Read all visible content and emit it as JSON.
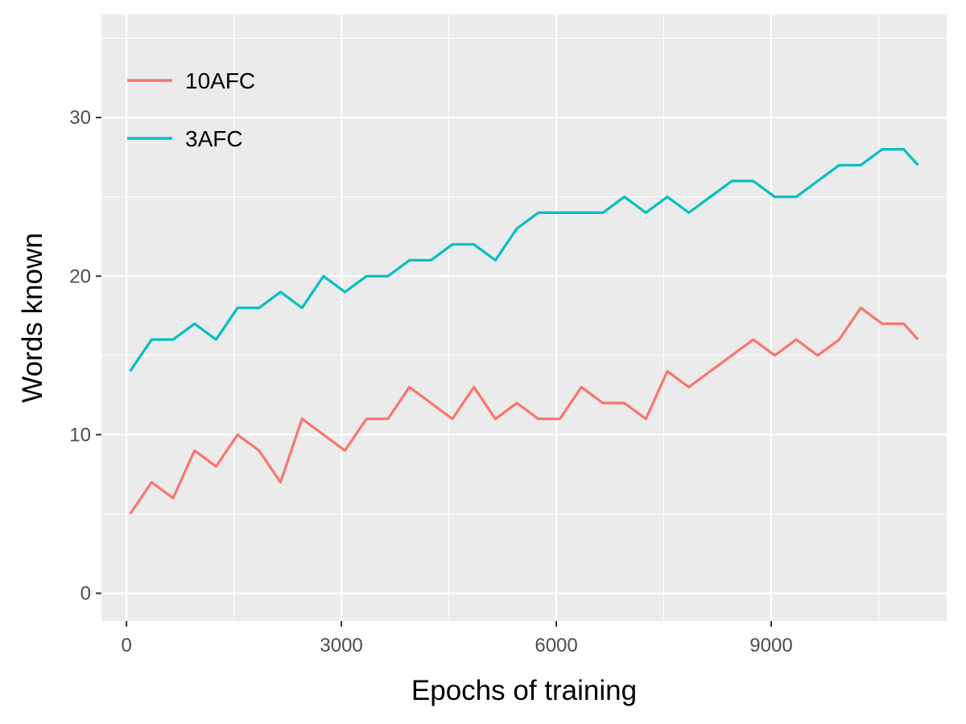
{
  "chart_data": {
    "type": "line",
    "title": "",
    "xlabel": "Epochs of training",
    "ylabel": "Words known",
    "xlim": [
      -350,
      11450
    ],
    "ylim": [
      -1.75,
      36.5
    ],
    "x_ticks": [
      0,
      3000,
      6000,
      9000
    ],
    "x_tick_labels": [
      "0",
      "3000",
      "6000",
      "9000"
    ],
    "y_ticks": [
      0,
      10,
      20,
      30
    ],
    "y_tick_labels": [
      "0",
      "10",
      "20",
      "30"
    ],
    "grid": true,
    "legend_position": "top-left",
    "series": [
      {
        "name": "10AFC",
        "color": "#f8766d",
        "x": [
          50,
          350,
          650,
          950,
          1250,
          1550,
          1850,
          2150,
          2450,
          2750,
          3050,
          3350,
          3650,
          3950,
          4250,
          4550,
          4850,
          5150,
          5450,
          5750,
          6050,
          6350,
          6650,
          6950,
          7250,
          7550,
          7850,
          8150,
          8450,
          8750,
          9050,
          9350,
          9650,
          9950,
          10250,
          10550,
          10850,
          11050
        ],
        "values": [
          5,
          7,
          6,
          9,
          8,
          10,
          9,
          7,
          11,
          10,
          9,
          11,
          11,
          13,
          12,
          11,
          13,
          11,
          12,
          11,
          11,
          13,
          12,
          12,
          11,
          14,
          13,
          14,
          15,
          16,
          15,
          16,
          15,
          16,
          18,
          17,
          17,
          16
        ]
      },
      {
        "name": "3AFC",
        "color": "#00bfc4",
        "x": [
          50,
          350,
          650,
          950,
          1250,
          1550,
          1850,
          2150,
          2450,
          2750,
          3050,
          3350,
          3650,
          3950,
          4250,
          4550,
          4850,
          5150,
          5450,
          5750,
          6050,
          6350,
          6650,
          6950,
          7250,
          7550,
          7850,
          8150,
          8450,
          8750,
          9050,
          9350,
          9650,
          9950,
          10250,
          10550,
          10850,
          11050
        ],
        "values": [
          14,
          16,
          16,
          17,
          16,
          18,
          18,
          19,
          18,
          20,
          19,
          20,
          20,
          21,
          21,
          22,
          22,
          21,
          23,
          24,
          24,
          24,
          24,
          25,
          24,
          25,
          24,
          25,
          26,
          26,
          25,
          25,
          26,
          27,
          27,
          28,
          28,
          27
        ]
      }
    ]
  }
}
